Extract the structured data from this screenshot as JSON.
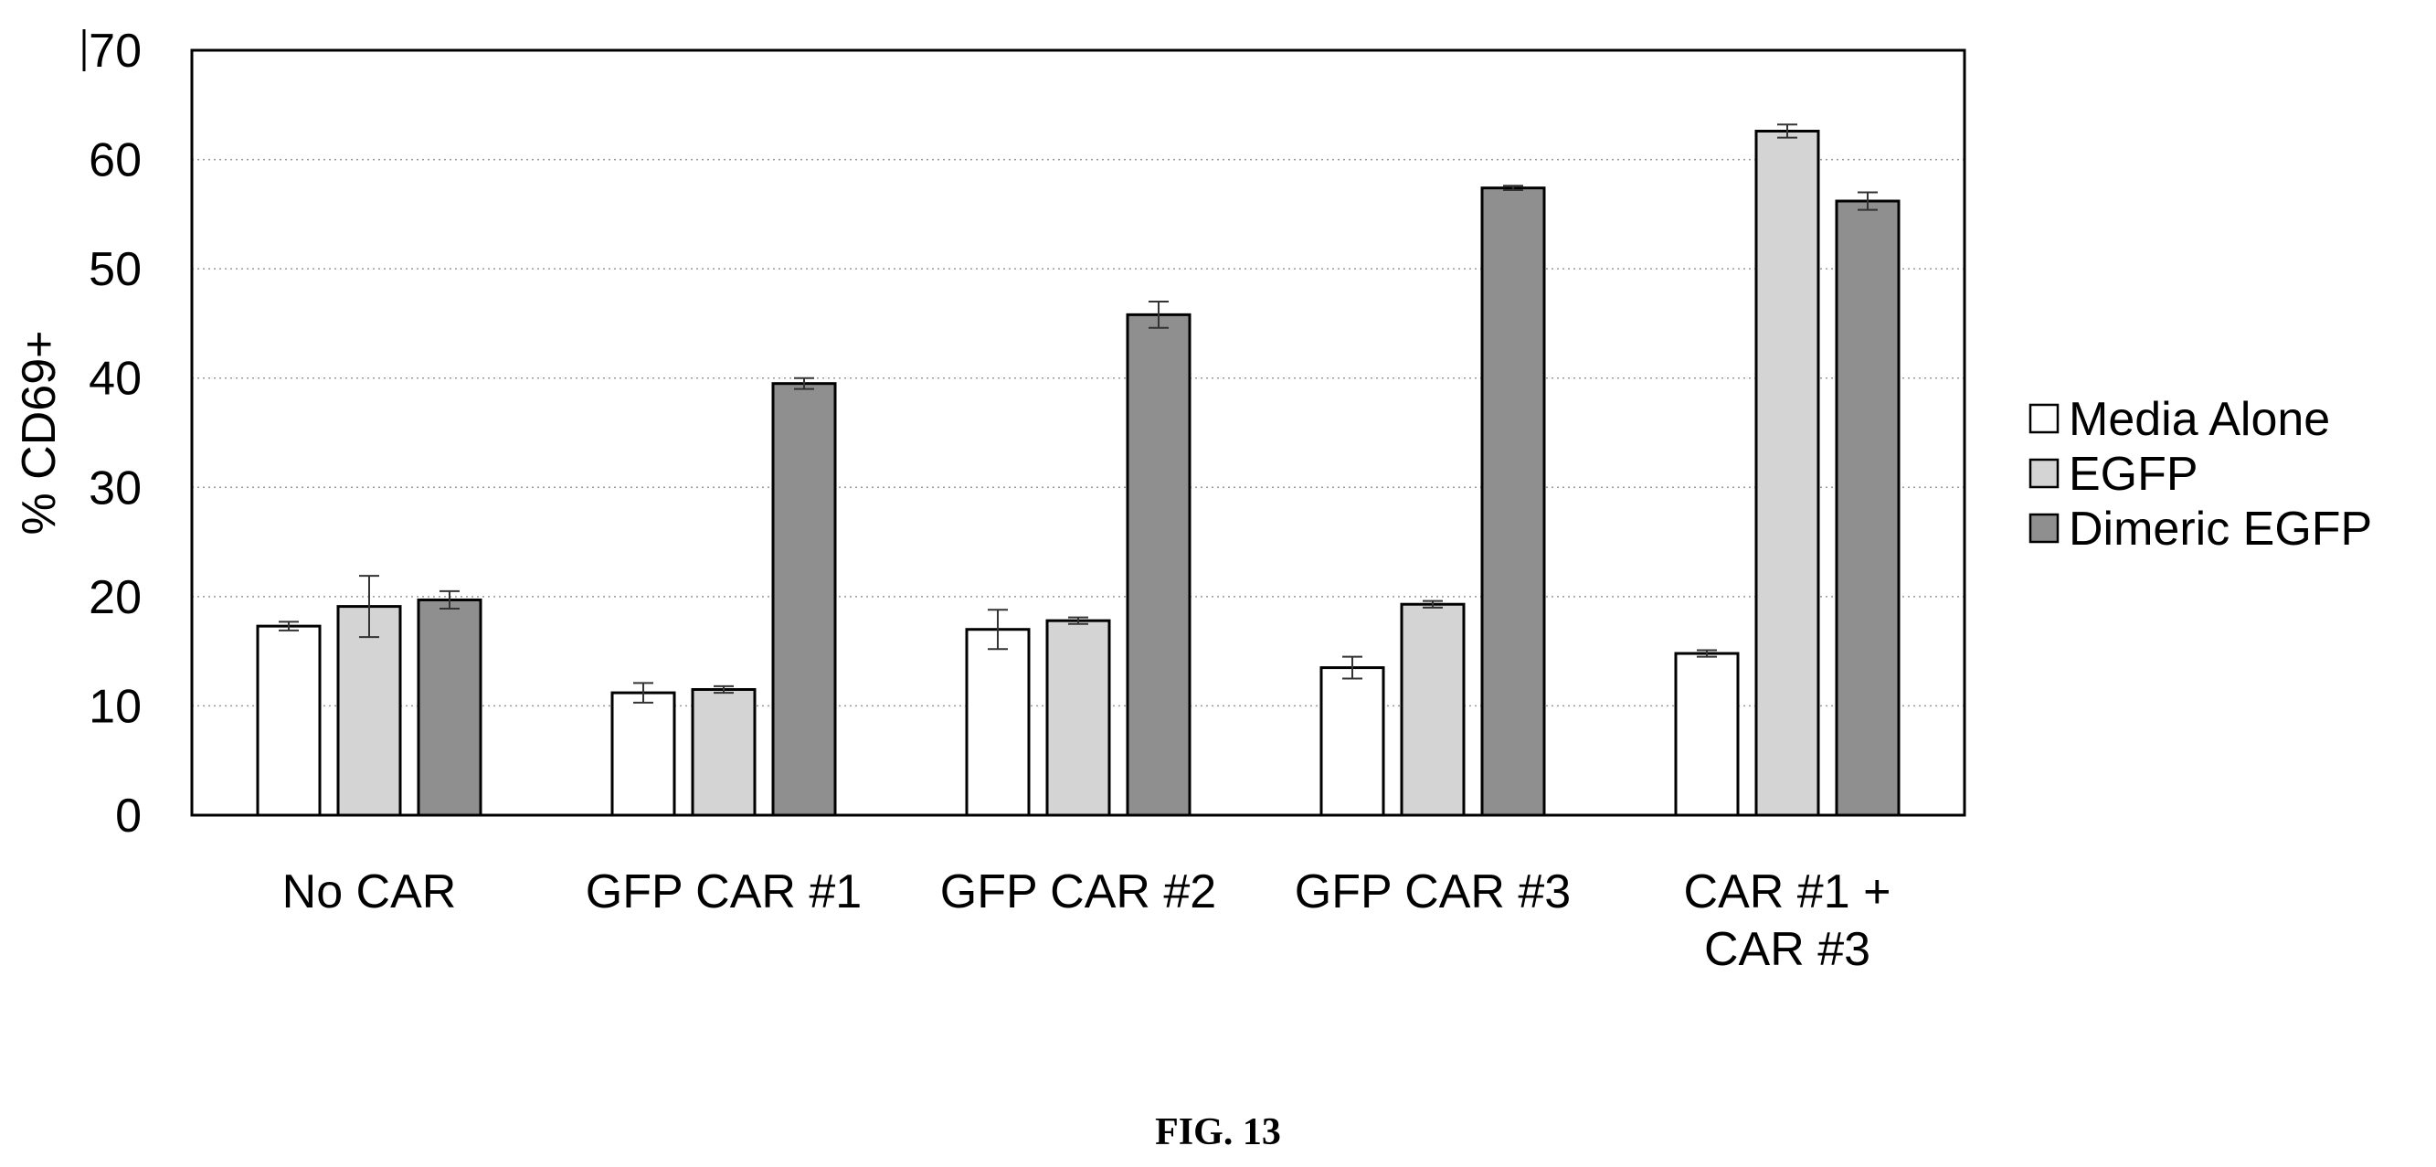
{
  "figure_caption": "FIG. 13",
  "chart_data": {
    "type": "bar",
    "title": "",
    "xlabel": "",
    "ylabel": "% CD69+",
    "ylim": [
      0,
      70
    ],
    "yticks": [
      0,
      10,
      20,
      30,
      40,
      50,
      60,
      70
    ],
    "grid": true,
    "legend_position": "right",
    "categories": [
      [
        "No CAR"
      ],
      [
        "GFP CAR #1"
      ],
      [
        "GFP CAR #2"
      ],
      [
        "GFP CAR #3"
      ],
      [
        "CAR #1 +",
        "CAR #3"
      ]
    ],
    "series": [
      {
        "name": "Media Alone",
        "color": "#ffffff",
        "values": [
          17.3,
          11.2,
          17.0,
          13.5,
          14.8
        ],
        "errors": [
          0.4,
          0.9,
          1.8,
          1.0,
          0.3
        ]
      },
      {
        "name": "EGFP",
        "color": "#d4d4d4",
        "values": [
          19.1,
          11.5,
          17.8,
          19.3,
          62.6
        ],
        "errors": [
          2.8,
          0.3,
          0.3,
          0.3,
          0.6
        ]
      },
      {
        "name": "Dimeric EGFP",
        "color": "#8f8f8f",
        "values": [
          19.7,
          39.5,
          45.8,
          57.4,
          56.2
        ],
        "errors": [
          0.8,
          0.5,
          1.2,
          0.2,
          0.8
        ]
      }
    ]
  }
}
